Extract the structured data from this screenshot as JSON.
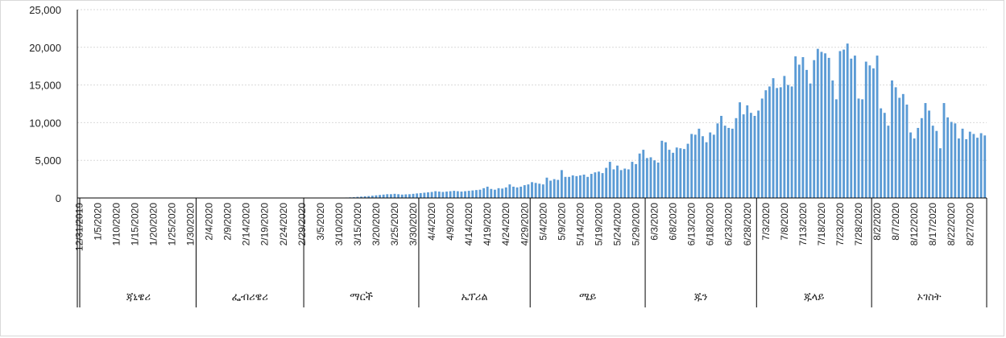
{
  "chart_data": {
    "type": "bar",
    "title": "",
    "xlabel": "",
    "ylabel": "",
    "ylim": [
      0,
      25000
    ],
    "y_ticks": [
      "0",
      "5,000",
      "10,000",
      "15,000",
      "20,000",
      "25,000"
    ],
    "y_tick_values": [
      0,
      5000,
      10000,
      15000,
      20000,
      25000
    ],
    "grid": true,
    "legend": "none",
    "bar_color": "#5b9bd5",
    "start_date": "12/31/2019",
    "x_tick_labels": [
      "12/31/2019",
      "1/5/2020",
      "1/10/2020",
      "1/15/2020",
      "1/20/2020",
      "1/25/2020",
      "1/30/2020",
      "2/4/2020",
      "2/9/2020",
      "2/14/2020",
      "2/19/2020",
      "2/24/2020",
      "2/29/2020",
      "3/5/2020",
      "3/10/2020",
      "3/15/2020",
      "3/20/2020",
      "3/25/2020",
      "3/30/2020",
      "4/4/2020",
      "4/9/2020",
      "4/14/2020",
      "4/19/2020",
      "4/24/2020",
      "4/29/2020",
      "5/4/2020",
      "5/9/2020",
      "5/14/2020",
      "5/19/2020",
      "5/24/2020",
      "5/29/2020",
      "6/3/2020",
      "6/8/2020",
      "6/13/2020",
      "6/18/2020",
      "6/23/2020",
      "6/28/2020",
      "7/3/2020",
      "7/8/2020",
      "7/13/2020",
      "7/18/2020",
      "7/23/2020",
      "7/28/2020",
      "8/2/2020",
      "8/7/2020",
      "8/12/2020",
      "8/17/2020",
      "8/22/2020",
      "8/27/2020"
    ],
    "months": [
      {
        "label": "ጃኒዌሪ",
        "days": 31
      },
      {
        "label": "ፌብሪዌሪ",
        "days": 29
      },
      {
        "label": "ማርች",
        "days": 31
      },
      {
        "label": "ኤፕሪል",
        "days": 30
      },
      {
        "label": "ሜይ",
        "days": 31
      },
      {
        "label": "ጁን",
        "days": 30
      },
      {
        "label": "ጁላይ",
        "days": 31
      },
      {
        "label": "ኦገስት",
        "days": 31
      }
    ],
    "values": [
      0,
      0,
      0,
      0,
      0,
      0,
      0,
      0,
      0,
      0,
      0,
      0,
      0,
      0,
      0,
      0,
      0,
      0,
      0,
      0,
      0,
      0,
      0,
      0,
      0,
      0,
      0,
      0,
      0,
      0,
      0,
      0,
      0,
      0,
      0,
      0,
      0,
      0,
      0,
      0,
      0,
      0,
      0,
      0,
      0,
      0,
      0,
      0,
      0,
      0,
      0,
      0,
      0,
      0,
      0,
      0,
      0,
      0,
      0,
      0,
      0,
      0,
      0,
      0,
      0,
      0,
      5,
      10,
      15,
      20,
      30,
      50,
      60,
      80,
      100,
      150,
      180,
      220,
      250,
      300,
      350,
      400,
      450,
      500,
      500,
      550,
      500,
      450,
      480,
      500,
      550,
      600,
      650,
      700,
      750,
      800,
      900,
      850,
      800,
      850,
      900,
      950,
      900,
      850,
      900,
      950,
      1000,
      1050,
      1100,
      1300,
      1500,
      1200,
      1100,
      1300,
      1250,
      1400,
      1800,
      1500,
      1400,
      1500,
      1700,
      1800,
      2100,
      2000,
      1900,
      1800,
      2700,
      2300,
      2500,
      2400,
      3700,
      2800,
      2800,
      3000,
      2900,
      3000,
      3100,
      2800,
      3200,
      3400,
      3500,
      3300,
      4000,
      4800,
      3800,
      4300,
      3700,
      3900,
      3800,
      4800,
      4500,
      5900,
      6400,
      5300,
      5400,
      5000,
      4700,
      7600,
      7400,
      6400,
      6000,
      6700,
      6600,
      6500,
      7200,
      8500,
      8400,
      9200,
      8200,
      7400,
      8700,
      8400,
      9900,
      10900,
      9600,
      9300,
      9200,
      10600,
      12700,
      11100,
      12300,
      11300,
      10900,
      11600,
      13200,
      14300,
      14800,
      15900,
      14600,
      14700,
      16200,
      15000,
      14800,
      18800,
      17700,
      18700,
      17000,
      15200,
      18300,
      19800,
      19400,
      19200,
      18600,
      15600,
      13100,
      19500,
      19700,
      20500,
      18500,
      18900,
      13200,
      13100,
      18100,
      17600,
      17200,
      18900,
      11900,
      11300,
      9600,
      15600,
      14700,
      13300,
      13800,
      12400,
      8700,
      7900,
      9300,
      10600,
      12600,
      11600,
      9600,
      8900,
      6600,
      12600,
      10700,
      10100,
      9900,
      7900,
      9200,
      7800,
      8800,
      8500,
      8000,
      8600,
      8300
    ]
  }
}
